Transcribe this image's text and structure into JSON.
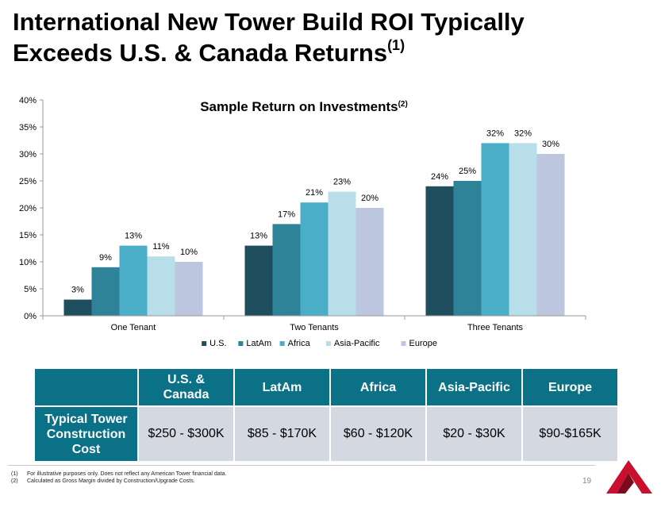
{
  "title": {
    "line1": "International New Tower Build ROI Typically",
    "line2": "Exceeds U.S. & Canada Returns",
    "marker": "(1)"
  },
  "chart_data": {
    "type": "bar",
    "title": "Sample Return on Investments",
    "title_marker": "(2)",
    "categories": [
      "One Tenant",
      "Two Tenants",
      "Three Tenants"
    ],
    "series": [
      {
        "name": "U.S.",
        "color": "#1f4e5f",
        "values": [
          3,
          13,
          24
        ],
        "labels": [
          "3%",
          "13%",
          "24%"
        ]
      },
      {
        "name": "LatAm",
        "color": "#2e8399",
        "values": [
          9,
          17,
          25
        ],
        "labels": [
          "9%",
          "17%",
          "25%"
        ]
      },
      {
        "name": "Africa",
        "color": "#4aaec8",
        "values": [
          13,
          21,
          32
        ],
        "labels": [
          "13%",
          "21%",
          "32%"
        ]
      },
      {
        "name": "Asia-Pacific",
        "color": "#b8dfe9",
        "values": [
          11,
          23,
          32
        ],
        "labels": [
          "11%",
          "23%",
          "32%"
        ]
      },
      {
        "name": "Europe",
        "color": "#bcc6de",
        "values": [
          10,
          20,
          30
        ],
        "labels": [
          "10%",
          "20%",
          "30%"
        ]
      }
    ],
    "ylim": [
      0,
      40
    ],
    "yticks": [
      0,
      5,
      10,
      15,
      20,
      25,
      30,
      35,
      40
    ],
    "ytick_labels": [
      "0%",
      "5%",
      "10%",
      "15%",
      "20%",
      "25%",
      "30%",
      "35%",
      "40%"
    ],
    "xlabel": "",
    "ylabel": "",
    "legend": "bottom",
    "grid": false
  },
  "table": {
    "corner": "",
    "headers": [
      "U.S. &\nCanada",
      "LatAm",
      "Africa",
      "Asia-Pacific",
      "Europe"
    ],
    "row_label": "Typical Tower Construction Cost",
    "values": [
      "$250 - $300K",
      "$85 - $170K",
      "$60 - $120K",
      "$20 - $30K",
      "$90-$165K"
    ]
  },
  "footnotes": [
    {
      "num": "(1)",
      "text": "For illustrative purposes only. Does not reflect any American Tower financial data."
    },
    {
      "num": "(2)",
      "text": "Calculated as Gross Margin divided by Construction/Upgrade Costs."
    }
  ],
  "page_number": "19",
  "colors": {
    "table_header": "#0b7187",
    "table_cell": "#d3d8e1",
    "logo_red": "#c8102e"
  }
}
